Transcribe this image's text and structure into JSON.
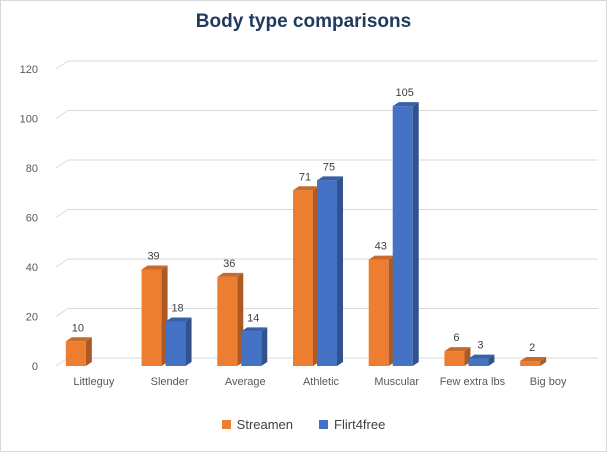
{
  "chart_data": {
    "type": "bar",
    "title": "Body type comparisons",
    "xlabel": "",
    "ylabel": "",
    "categories": [
      "Littleguy",
      "Slender",
      "Average",
      "Athletic",
      "Muscular",
      "Few extra lbs",
      "Big boy"
    ],
    "yticks": [
      "0",
      "20",
      "40",
      "60",
      "80",
      "100",
      "120"
    ],
    "ylim": [
      0,
      120
    ],
    "grid": true,
    "legend_position": "bottom",
    "style": "3d-clustered-column",
    "series": [
      {
        "name": "Streamen",
        "color": "#ED7D31",
        "values": [
          10,
          39,
          36,
          71,
          43,
          6,
          2
        ]
      },
      {
        "name": "Flirt4free",
        "color": "#4472C4",
        "values": [
          null,
          18,
          14,
          75,
          105,
          3,
          null
        ]
      }
    ]
  }
}
